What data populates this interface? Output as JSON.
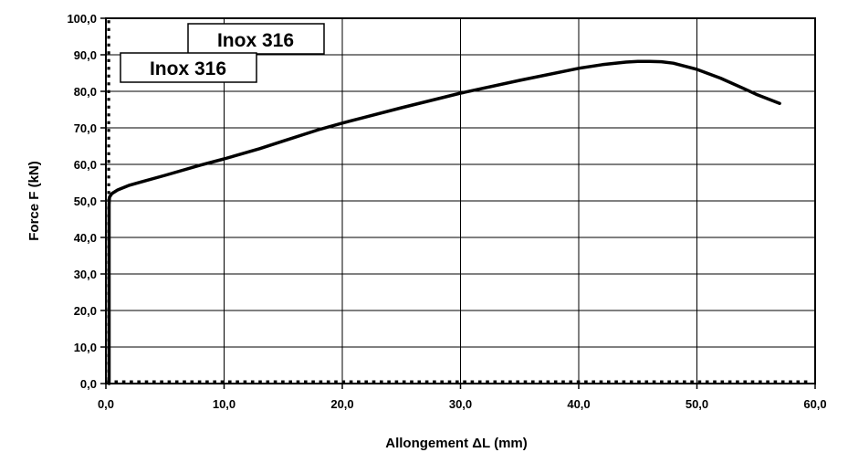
{
  "chart_data": {
    "type": "line",
    "title": "",
    "xlabel": "Allongement ΔL  (mm)",
    "ylabel": "Force F (kN)",
    "xlim": [
      0,
      60
    ],
    "ylim": [
      0,
      100
    ],
    "x_ticks": [
      "0,0",
      "10,0",
      "20,0",
      "30,0",
      "40,0",
      "50,0",
      "60,0"
    ],
    "y_ticks": [
      "0,0",
      "10,0",
      "20,0",
      "30,0",
      "40,0",
      "50,0",
      "60,0",
      "70,0",
      "80,0",
      "90,0",
      "100,0"
    ],
    "grid": true,
    "legend_labels": [
      "Inox 316",
      "Inox 316"
    ],
    "series": [
      {
        "name": "Inox 316",
        "color": "#000000",
        "x": [
          0,
          0.05,
          0.1,
          0.15,
          0.2,
          0.3,
          0.5,
          1,
          2,
          3,
          5,
          8,
          10,
          13,
          15,
          18,
          20,
          25,
          30,
          35,
          40,
          42,
          44,
          45,
          46,
          47,
          48,
          50,
          52,
          54,
          55,
          57
        ],
        "y": [
          0,
          15,
          32,
          45,
          49,
          51,
          52,
          53,
          54.3,
          55.2,
          57,
          59.8,
          61.5,
          64.3,
          66.4,
          69.5,
          71.3,
          75.5,
          79.5,
          83,
          86.3,
          87.3,
          88,
          88.2,
          88.2,
          88.1,
          87.7,
          86,
          83.6,
          80.7,
          79.2,
          76.7
        ]
      }
    ]
  }
}
